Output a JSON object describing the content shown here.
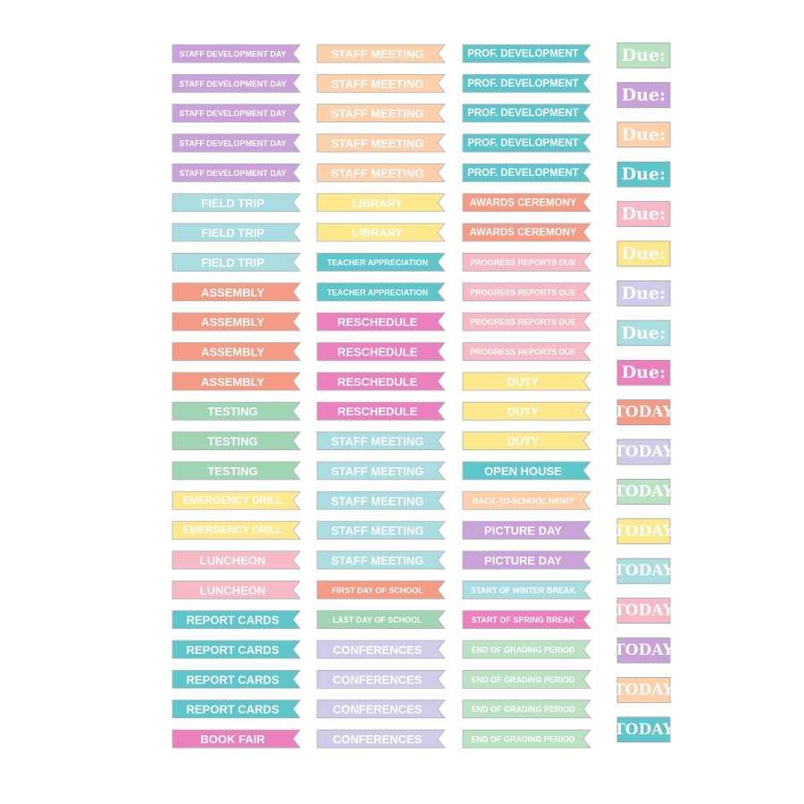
{
  "columns": [
    {
      "stickers": [
        {
          "label": "STAFF DEVELOPMENT DAY",
          "color": "#c8a2d8"
        },
        {
          "label": "STAFF DEVELOPMENT DAY",
          "color": "#c8a2d8"
        },
        {
          "label": "STAFF DEVELOPMENT DAY",
          "color": "#c8a2d8"
        },
        {
          "label": "STAFF DEVELOPMENT DAY",
          "color": "#c8a2d8"
        },
        {
          "label": "STAFF DEVELOPMENT DAY",
          "color": "#c8a2d8"
        },
        {
          "label": "FIELD TRIP",
          "color": "#a9dde0"
        },
        {
          "label": "FIELD TRIP",
          "color": "#a9dde0"
        },
        {
          "label": "FIELD TRIP",
          "color": "#a9dde0"
        },
        {
          "label": "ASSEMBLY",
          "color": "#f59b84"
        },
        {
          "label": "ASSEMBLY",
          "color": "#f59b84"
        },
        {
          "label": "ASSEMBLY",
          "color": "#f59b84"
        },
        {
          "label": "ASSEMBLY",
          "color": "#f59b84"
        },
        {
          "label": "TESTING",
          "color": "#9fd5b3"
        },
        {
          "label": "TESTING",
          "color": "#9fd5b3"
        },
        {
          "label": "TESTING",
          "color": "#9fd5b3"
        },
        {
          "label": "EMERGENCY DRILL",
          "color": "#fde98b"
        },
        {
          "label": "EMERGENCY DRILL",
          "color": "#fde98b"
        },
        {
          "label": "LUNCHEON",
          "color": "#f7b9c5"
        },
        {
          "label": "LUNCHEON",
          "color": "#f7b9c5"
        },
        {
          "label": "REPORT CARDS",
          "color": "#5cc7cb"
        },
        {
          "label": "REPORT CARDS",
          "color": "#5cc7cb"
        },
        {
          "label": "REPORT CARDS",
          "color": "#5cc7cb"
        },
        {
          "label": "REPORT CARDS",
          "color": "#5cc7cb"
        },
        {
          "label": "BOOK FAIR",
          "color": "#ec80be"
        }
      ]
    },
    {
      "stickers": [
        {
          "label": "STAFF MEETING",
          "color": "#fdd0aa"
        },
        {
          "label": "STAFF MEETING",
          "color": "#fdd0aa"
        },
        {
          "label": "STAFF MEETING",
          "color": "#fdd0aa"
        },
        {
          "label": "STAFF MEETING",
          "color": "#fdd0aa"
        },
        {
          "label": "STAFF MEETING",
          "color": "#fdd0aa"
        },
        {
          "label": "LIBRARY",
          "color": "#fde98b"
        },
        {
          "label": "LIBRARY",
          "color": "#fde98b"
        },
        {
          "label": "TEACHER APPRECIATION",
          "color": "#5cc7cb"
        },
        {
          "label": "TEACHER APPRECIATION",
          "color": "#5cc7cb"
        },
        {
          "label": "RESCHEDULE",
          "color": "#ec80be"
        },
        {
          "label": "RESCHEDULE",
          "color": "#ec80be"
        },
        {
          "label": "RESCHEDULE",
          "color": "#ec80be"
        },
        {
          "label": "RESCHEDULE",
          "color": "#ec80be"
        },
        {
          "label": "STAFF MEETING",
          "color": "#a9dde0"
        },
        {
          "label": "STAFF MEETING",
          "color": "#a9dde0"
        },
        {
          "label": "STAFF MEETING",
          "color": "#a9dde0"
        },
        {
          "label": "STAFF MEETING",
          "color": "#a9dde0"
        },
        {
          "label": "STAFF MEETING",
          "color": "#a9dde0"
        },
        {
          "label": "FIRST DAY OF SCHOOL",
          "color": "#f59b84"
        },
        {
          "label": "LAST DAY OF SCHOOL",
          "color": "#9fd5b3"
        },
        {
          "label": "CONFERENCES",
          "color": "#d0cbe9"
        },
        {
          "label": "CONFERENCES",
          "color": "#d0cbe9"
        },
        {
          "label": "CONFERENCES",
          "color": "#d0cbe9"
        },
        {
          "label": "CONFERENCES",
          "color": "#d0cbe9"
        }
      ]
    },
    {
      "stickers": [
        {
          "label": "PROF. DEVELOPMENT",
          "color": "#5cc7cb"
        },
        {
          "label": "PROF. DEVELOPMENT",
          "color": "#5cc7cb"
        },
        {
          "label": "PROF. DEVELOPMENT",
          "color": "#5cc7cb"
        },
        {
          "label": "PROF. DEVELOPMENT",
          "color": "#5cc7cb"
        },
        {
          "label": "PROF. DEVELOPMENT",
          "color": "#5cc7cb"
        },
        {
          "label": "AWARDS CEREMONY",
          "color": "#f59b84"
        },
        {
          "label": "AWARDS CEREMONY",
          "color": "#f59b84"
        },
        {
          "label": "PROGRESS REPORTS DUE",
          "color": "#f7b9c5"
        },
        {
          "label": "PROGRESS REPORTS DUE",
          "color": "#f7b9c5"
        },
        {
          "label": "PROGRESS REPORTS DUE",
          "color": "#f7b9c5"
        },
        {
          "label": "PROGRESS REPORTS DUE",
          "color": "#f7b9c5"
        },
        {
          "label": "DUTY",
          "color": "#fde98b"
        },
        {
          "label": "DUTY",
          "color": "#fde98b"
        },
        {
          "label": "DUTY",
          "color": "#fde98b"
        },
        {
          "label": "OPEN HOUSE",
          "color": "#5cc7cb"
        },
        {
          "label": "BACK-TO-SCHOOL NIGHT",
          "color": "#fdd0aa"
        },
        {
          "label": "PICTURE DAY",
          "color": "#c8a2d8"
        },
        {
          "label": "PICTURE DAY",
          "color": "#c8a2d8"
        },
        {
          "label": "START OF WINTER BREAK",
          "color": "#a9dde0"
        },
        {
          "label": "START OF SPRING BREAK",
          "color": "#ec80be"
        },
        {
          "label": "END OF GRADING PERIOD",
          "color": "#b9e2c1"
        },
        {
          "label": "END OF GRADING PERIOD",
          "color": "#b9e2c1"
        },
        {
          "label": "END OF GRADING PERIOD",
          "color": "#b9e2c1"
        },
        {
          "label": "END OF GRADING PERIOD",
          "color": "#b9e2c1"
        }
      ]
    },
    {
      "stickers": [
        {
          "label": "Due:",
          "color": "#b9e2c1"
        },
        {
          "label": "Due:",
          "color": "#c8a2d8"
        },
        {
          "label": "Due:",
          "color": "#fdd0aa"
        },
        {
          "label": "Due:",
          "color": "#5cc7cb"
        },
        {
          "label": "Due:",
          "color": "#f7b9c5"
        },
        {
          "label": "Due:",
          "color": "#fde98b"
        },
        {
          "label": "Due:",
          "color": "#d0cbe9"
        },
        {
          "label": "Due:",
          "color": "#a9dde0"
        },
        {
          "label": "Due:",
          "color": "#ec80be"
        },
        {
          "label": "TODAY",
          "color": "#f59b84"
        },
        {
          "label": "TODAY",
          "color": "#d0cbe9"
        },
        {
          "label": "TODAY",
          "color": "#b9e2c1"
        },
        {
          "label": "TODAY",
          "color": "#fde98b"
        },
        {
          "label": "TODAY",
          "color": "#a9dde0"
        },
        {
          "label": "TODAY",
          "color": "#f7b9c5"
        },
        {
          "label": "TODAY",
          "color": "#c8a2d8"
        },
        {
          "label": "TODAY",
          "color": "#fdd0aa"
        },
        {
          "label": "TODAY",
          "color": "#5cc7cb"
        }
      ]
    }
  ]
}
